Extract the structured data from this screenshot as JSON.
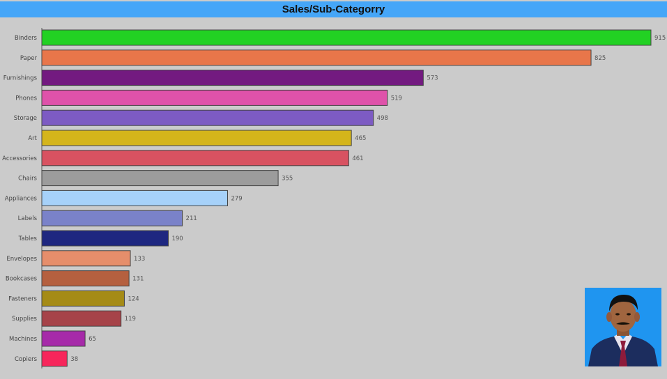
{
  "chart_data": {
    "type": "bar",
    "orientation": "horizontal",
    "title": "Sales/Sub-Categorry",
    "xlabel": "",
    "ylabel": "",
    "xlim": [
      0,
      915
    ],
    "grid": false,
    "legend": "none",
    "categories": [
      "Binders",
      "Paper",
      "Furnishings",
      "Phones",
      "Storage",
      "Art",
      "Accessories",
      "Chairs",
      "Appliances",
      "Labels",
      "Tables",
      "Envelopes",
      "Bookcases",
      "Fasteners",
      "Supplies",
      "Machines",
      "Copiers"
    ],
    "values": [
      915,
      825,
      573,
      519,
      498,
      465,
      461,
      355,
      279,
      211,
      190,
      133,
      131,
      124,
      119,
      65,
      38
    ],
    "colors": [
      "#22d123",
      "#e8764a",
      "#731a80",
      "#df52aa",
      "#7d5bc3",
      "#d4b51b",
      "#d85261",
      "#9c9c9c",
      "#a6d1f9",
      "#7a82c9",
      "#1e2780",
      "#e68e6b",
      "#b5603f",
      "#a58b16",
      "#a64349",
      "#a62aa9",
      "#f7265b"
    ]
  },
  "photo": {
    "description_icon": "person-photo"
  }
}
